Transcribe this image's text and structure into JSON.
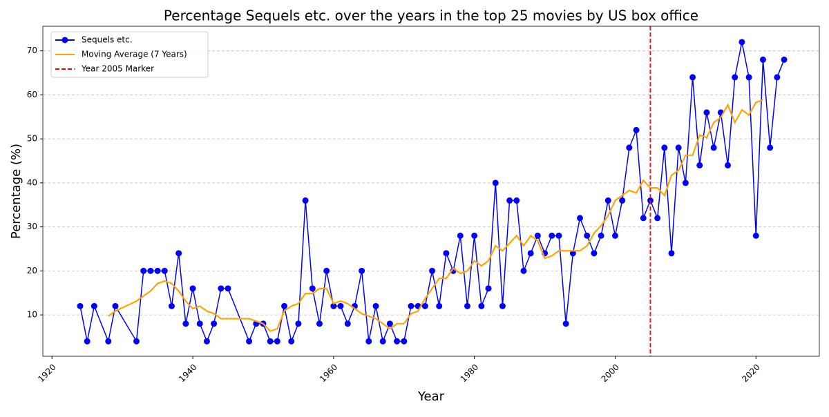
{
  "chart_data": {
    "type": "line",
    "title": "Percentage Sequels etc. over the years in the top 25 movies by US box office",
    "x_label": "Year",
    "y_label": "Percentage (%)",
    "x": [
      1924,
      1925,
      1926,
      1928,
      1929,
      1932,
      1933,
      1934,
      1935,
      1936,
      1937,
      1938,
      1939,
      1940,
      1941,
      1942,
      1943,
      1944,
      1945,
      1948,
      1949,
      1950,
      1951,
      1952,
      1953,
      1954,
      1955,
      1956,
      1957,
      1958,
      1959,
      1960,
      1961,
      1962,
      1963,
      1964,
      1965,
      1966,
      1967,
      1968,
      1969,
      1970,
      1971,
      1972,
      1973,
      1974,
      1975,
      1976,
      1977,
      1978,
      1979,
      1980,
      1981,
      1982,
      1983,
      1984,
      1985,
      1986,
      1987,
      1988,
      1989,
      1990,
      1991,
      1992,
      1993,
      1994,
      1995,
      1996,
      1997,
      1998,
      1999,
      2000,
      2001,
      2002,
      2003,
      2004,
      2005,
      2006,
      2007,
      2008,
      2009,
      2010,
      2011,
      2012,
      2013,
      2014,
      2015,
      2016,
      2017,
      2018,
      2019,
      2020,
      2021,
      2022,
      2023,
      2024
    ],
    "series": [
      {
        "name": "Sequels etc.",
        "color": "#0000ff",
        "markers": true,
        "values": [
          12,
          4,
          12,
          4,
          12,
          4,
          20,
          20,
          20,
          20,
          12,
          24,
          8,
          16,
          8,
          4,
          8,
          16,
          16,
          4,
          8,
          8,
          4,
          4,
          12,
          4,
          8,
          36,
          16,
          8,
          20,
          12,
          12,
          8,
          12,
          20,
          4,
          12,
          4,
          8,
          4,
          4,
          12,
          12,
          12,
          20,
          12,
          24,
          20,
          28,
          12,
          28,
          12,
          16,
          40,
          12,
          36,
          36,
          20,
          24,
          28,
          24,
          28,
          28,
          8,
          24,
          32,
          28,
          24,
          28,
          36,
          28,
          36,
          48,
          52,
          32,
          36,
          32,
          48,
          24,
          48,
          40,
          64,
          44,
          56,
          48,
          56,
          44,
          64,
          72,
          64,
          28,
          68,
          48,
          64,
          68
        ]
      },
      {
        "name": "Moving Average (7 Years)",
        "color": "#ffa500",
        "markers": false,
        "values": [
          null,
          null,
          null,
          9.71,
          10.86,
          13.14,
          14.29,
          15.43,
          17.14,
          17.71,
          17.14,
          15.43,
          13.14,
          11.43,
          12.0,
          10.86,
          10.29,
          9.14,
          9.14,
          9.14,
          8.57,
          8.0,
          6.29,
          6.86,
          10.86,
          12.0,
          12.57,
          14.86,
          14.86,
          16.0,
          16.0,
          12.57,
          13.14,
          12.57,
          11.43,
          10.29,
          9.71,
          9.14,
          8.0,
          6.86,
          8.0,
          8.0,
          10.29,
          10.86,
          13.71,
          16.0,
          18.29,
          18.29,
          20.57,
          19.43,
          20.0,
          22.29,
          21.14,
          22.29,
          25.71,
          24.57,
          26.29,
          28.0,
          25.71,
          28.0,
          26.86,
          22.86,
          23.43,
          24.57,
          24.57,
          24.57,
          24.57,
          25.71,
          28.57,
          30.29,
          32.57,
          36.0,
          37.14,
          38.29,
          37.71,
          40.57,
          38.86,
          38.86,
          37.14,
          41.71,
          42.86,
          46.29,
          46.29,
          50.86,
          50.29,
          53.71,
          54.86,
          57.71,
          53.71,
          56.57,
          55.43,
          58.29,
          58.86,
          null,
          null,
          null
        ]
      }
    ],
    "marker": {
      "name": "Year 2005 Marker",
      "color": "#ff0000",
      "x": 2005
    },
    "xlim": [
      1918.7,
      2029.0
    ],
    "ylim": [
      0.6,
      75.6
    ],
    "xticks": [
      1920,
      1940,
      1960,
      1980,
      2000,
      2020
    ],
    "yticks": [
      10,
      20,
      30,
      40,
      50,
      60,
      70
    ],
    "grid": true,
    "legend": "upper left"
  }
}
